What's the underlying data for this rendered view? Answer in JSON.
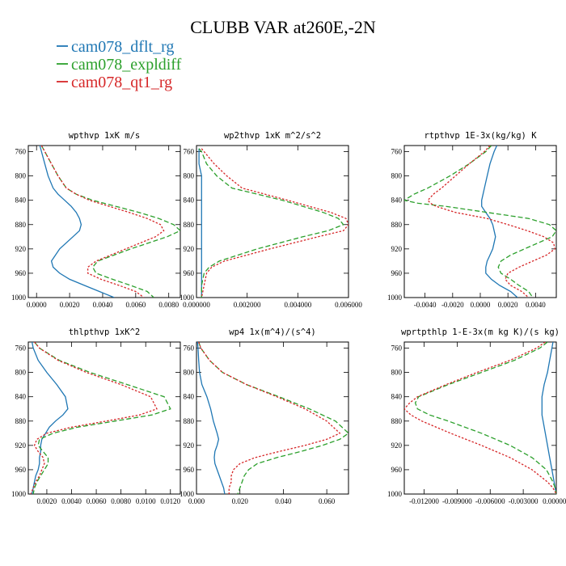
{
  "figure": {
    "title": "CLUBB VAR at260E,-2N",
    "legend": [
      {
        "name": "cam078_dflt_rg",
        "color": "#1f77b4",
        "dash": "solid"
      },
      {
        "name": "cam078_expldiff",
        "color": "#2ca02c",
        "dash": "dash"
      },
      {
        "name": "cam078_qt1_rg",
        "color": "#d62728",
        "dash": "dot"
      }
    ]
  },
  "chart_data": [
    {
      "type": "line",
      "title": "wpthvp  1xK m/s",
      "xlim": [
        -0.0005,
        0.0087
      ],
      "ylim": [
        1000,
        750
      ],
      "xticks": [
        0.0,
        0.002,
        0.004,
        0.006,
        0.008
      ],
      "xtick_labels": [
        "0.0000",
        "0.0020",
        "0.0040",
        "0.0060",
        "0.0080"
      ],
      "yticks": [
        760,
        800,
        840,
        880,
        920,
        960,
        1000
      ],
      "ytick_labels": [
        "760",
        "800",
        "840",
        "880",
        "920",
        "960",
        "1000"
      ],
      "y": [
        750,
        760,
        780,
        800,
        820,
        830,
        840,
        850,
        860,
        870,
        880,
        890,
        900,
        920,
        940,
        950,
        960,
        970,
        980,
        990,
        1000
      ],
      "series": [
        {
          "name": "cam078_dflt_rg",
          "x": [
            0.0002,
            0.0003,
            0.0005,
            0.0007,
            0.001,
            0.0013,
            0.0017,
            0.0021,
            0.0024,
            0.0026,
            0.0027,
            0.0026,
            0.0022,
            0.0014,
            0.0009,
            0.001,
            0.0014,
            0.002,
            0.0029,
            0.0038,
            0.0047
          ]
        },
        {
          "name": "cam078_expldiff",
          "x": [
            0.0003,
            0.0005,
            0.0009,
            0.0013,
            0.0018,
            0.0024,
            0.0034,
            0.0048,
            0.0062,
            0.0074,
            0.0083,
            0.0087,
            0.0079,
            0.0057,
            0.0037,
            0.0034,
            0.0036,
            0.0046,
            0.0057,
            0.0067,
            0.0071
          ]
        },
        {
          "name": "cam078_qt1_rg",
          "x": [
            0.0003,
            0.0005,
            0.0009,
            0.0013,
            0.0018,
            0.0024,
            0.0032,
            0.0044,
            0.0056,
            0.0067,
            0.0075,
            0.0077,
            0.0072,
            0.0054,
            0.0036,
            0.0031,
            0.0031,
            0.0039,
            0.005,
            0.006,
            0.0065
          ]
        }
      ]
    },
    {
      "type": "line",
      "title": "wp2thvp  1xK m^2/s^2",
      "xlim": [
        0.0,
        0.006
      ],
      "ylim": [
        1000,
        750
      ],
      "xticks": [
        0.0,
        0.002,
        0.004,
        0.006
      ],
      "xtick_labels": [
        "0.000000",
        "0.002000",
        "0.004000",
        "0.006000"
      ],
      "yticks": [
        760,
        800,
        840,
        880,
        920,
        960,
        1000
      ],
      "ytick_labels": [
        "760",
        "800",
        "840",
        "880",
        "920",
        "960",
        "1000"
      ],
      "y": [
        755,
        760,
        780,
        800,
        820,
        840,
        860,
        870,
        880,
        890,
        900,
        920,
        940,
        950,
        960,
        980,
        1000
      ],
      "series": [
        {
          "name": "cam078_dflt_rg",
          "x": [
            0.0001,
            0.0001,
            0.0001,
            0.0002,
            0.0002,
            0.0002,
            0.0002,
            0.0002,
            0.0002,
            0.0002,
            0.0002,
            0.0002,
            0.0002,
            0.0002,
            0.0002,
            0.0002,
            0.0002
          ]
        },
        {
          "name": "cam078_expldiff",
          "x": [
            0.0001,
            0.0002,
            0.0004,
            0.0008,
            0.0014,
            0.0034,
            0.005,
            0.0056,
            0.0058,
            0.0052,
            0.0042,
            0.0024,
            0.0009,
            0.0005,
            0.0003,
            0.0002,
            0.0002
          ]
        },
        {
          "name": "cam078_qt1_rg",
          "x": [
            0.0002,
            0.0003,
            0.0007,
            0.0012,
            0.0018,
            0.0036,
            0.0053,
            0.0059,
            0.006,
            0.0058,
            0.0048,
            0.0029,
            0.0011,
            0.0006,
            0.0004,
            0.0003,
            0.0002
          ]
        }
      ]
    },
    {
      "type": "line",
      "title": "rtpthvp  1E-3x(kg/kg) K",
      "xlim": [
        -0.0055,
        0.0055
      ],
      "ylim": [
        1000,
        750
      ],
      "xticks": [
        -0.004,
        -0.002,
        0.0,
        0.002,
        0.004
      ],
      "xtick_labels": [
        "-0.0040",
        "-0.0020",
        "0.0000",
        "0.0020",
        "0.0040"
      ],
      "yticks": [
        760,
        800,
        840,
        880,
        920,
        960,
        1000
      ],
      "ytick_labels": [
        "760",
        "800",
        "840",
        "880",
        "920",
        "960",
        "1000"
      ],
      "y": [
        750,
        760,
        780,
        800,
        820,
        830,
        840,
        845,
        850,
        860,
        870,
        880,
        890,
        900,
        910,
        920,
        930,
        940,
        950,
        960,
        970,
        980,
        990,
        1000
      ],
      "series": [
        {
          "name": "cam078_dflt_rg",
          "x": [
            0.0012,
            0.001,
            0.0007,
            0.0005,
            0.0003,
            0.0002,
            0.0001,
            0.0001,
            0.0001,
            0.0004,
            0.0007,
            0.0009,
            0.001,
            0.0011,
            0.001,
            0.0009,
            0.0007,
            0.0005,
            0.0004,
            0.0004,
            0.0008,
            0.0014,
            0.0022,
            0.0027
          ]
        },
        {
          "name": "cam078_expldiff",
          "x": [
            0.0008,
            0.0004,
            -0.0008,
            -0.0022,
            -0.0038,
            -0.0048,
            -0.0055,
            -0.0045,
            -0.0025,
            0.0005,
            0.0035,
            0.005,
            0.0055,
            0.0052,
            0.0042,
            0.0032,
            0.0022,
            0.0015,
            0.0013,
            0.0015,
            0.0022,
            0.0028,
            0.0035,
            0.0038
          ]
        },
        {
          "name": "cam078_qt1_rg",
          "x": [
            0.0007,
            0.0003,
            -0.0008,
            -0.0018,
            -0.0028,
            -0.0034,
            -0.0038,
            -0.0036,
            -0.0032,
            -0.0018,
            0.0005,
            0.002,
            0.0034,
            0.0046,
            0.0053,
            0.0054,
            0.0048,
            0.0038,
            0.0028,
            0.002,
            0.0018,
            0.0022,
            0.003,
            0.0035
          ]
        }
      ]
    },
    {
      "type": "line",
      "title": "thlpthvp  1xK^2",
      "xlim": [
        0.0005,
        0.0128
      ],
      "ylim": [
        1000,
        750
      ],
      "xticks": [
        0.002,
        0.004,
        0.006,
        0.008,
        0.01,
        0.012
      ],
      "xtick_labels": [
        "0.0020",
        "0.0040",
        "0.0060",
        "0.0080",
        "0.0100",
        "0.0120"
      ],
      "yticks": [
        760,
        800,
        840,
        880,
        920,
        960,
        1000
      ],
      "ytick_labels": [
        "760",
        "800",
        "840",
        "880",
        "920",
        "960",
        "1000"
      ],
      "y": [
        750,
        760,
        780,
        800,
        820,
        840,
        860,
        870,
        880,
        890,
        900,
        910,
        920,
        930,
        940,
        950,
        960,
        970,
        980,
        990,
        1000
      ],
      "series": [
        {
          "name": "cam078_dflt_rg",
          "x": [
            0.0008,
            0.0009,
            0.0013,
            0.002,
            0.0028,
            0.0035,
            0.0037,
            0.0033,
            0.0027,
            0.0022,
            0.0019,
            0.0016,
            0.0015,
            0.0015,
            0.0014,
            0.0014,
            0.0013,
            0.0011,
            0.001,
            0.0009,
            0.0008
          ]
        },
        {
          "name": "cam078_expldiff",
          "x": [
            0.001,
            0.0014,
            0.003,
            0.0055,
            0.0085,
            0.0115,
            0.012,
            0.0105,
            0.0075,
            0.0045,
            0.0025,
            0.0014,
            0.0013,
            0.0017,
            0.0021,
            0.0021,
            0.0018,
            0.0015,
            0.0012,
            0.001,
            0.0009
          ]
        },
        {
          "name": "cam078_qt1_rg",
          "x": [
            0.001,
            0.0014,
            0.0029,
            0.0052,
            0.008,
            0.0104,
            0.0109,
            0.0095,
            0.0068,
            0.004,
            0.002,
            0.0012,
            0.001,
            0.0013,
            0.0017,
            0.0018,
            0.0016,
            0.0014,
            0.0011,
            0.0009,
            0.0007
          ]
        }
      ]
    },
    {
      "type": "line",
      "title": "wp4  1x(m^4)/(s^4)",
      "xlim": [
        0.0,
        0.07
      ],
      "ylim": [
        1000,
        750
      ],
      "xticks": [
        0.0,
        0.02,
        0.04,
        0.06
      ],
      "xtick_labels": [
        "0.000",
        "0.020",
        "0.040",
        "0.060"
      ],
      "yticks": [
        760,
        800,
        840,
        880,
        920,
        960,
        1000
      ],
      "ytick_labels": [
        "760",
        "800",
        "840",
        "880",
        "920",
        "960",
        "1000"
      ],
      "y": [
        750,
        760,
        780,
        800,
        820,
        840,
        860,
        880,
        900,
        910,
        920,
        930,
        940,
        950,
        960,
        970,
        980,
        990,
        1000
      ],
      "series": [
        {
          "name": "cam078_dflt_rg",
          "x": [
            0.0005,
            0.0007,
            0.001,
            0.0014,
            0.0025,
            0.0048,
            0.0065,
            0.0078,
            0.0095,
            0.0102,
            0.0095,
            0.0085,
            0.0082,
            0.0085,
            0.0095,
            0.0105,
            0.0115,
            0.0125,
            0.013
          ]
        },
        {
          "name": "cam078_expldiff",
          "x": [
            0.001,
            0.002,
            0.006,
            0.012,
            0.023,
            0.038,
            0.052,
            0.064,
            0.07,
            0.066,
            0.058,
            0.048,
            0.037,
            0.028,
            0.024,
            0.022,
            0.021,
            0.02,
            0.019
          ]
        },
        {
          "name": "cam078_qt1_rg",
          "x": [
            0.001,
            0.002,
            0.006,
            0.012,
            0.023,
            0.037,
            0.05,
            0.06,
            0.066,
            0.06,
            0.05,
            0.038,
            0.027,
            0.02,
            0.017,
            0.016,
            0.016,
            0.015,
            0.015
          ]
        }
      ]
    },
    {
      "type": "line",
      "title": "wprtpthlp  1-E-3x(m kg K)/(s kg)",
      "xlim": [
        -0.0138,
        0.0
      ],
      "ylim": [
        1000,
        750
      ],
      "xticks": [
        -0.012,
        -0.009,
        -0.006,
        -0.003,
        0.0
      ],
      "xtick_labels": [
        "-0.012000",
        "-0.009000",
        "-0.006000",
        "-0.003000",
        "0.000000"
      ],
      "yticks": [
        760,
        800,
        840,
        880,
        920,
        960,
        1000
      ],
      "ytick_labels": [
        "760",
        "800",
        "840",
        "880",
        "920",
        "960",
        "1000"
      ],
      "y": [
        750,
        760,
        780,
        800,
        820,
        840,
        850,
        860,
        870,
        880,
        900,
        920,
        940,
        960,
        980,
        990,
        1000
      ],
      "series": [
        {
          "name": "cam078_dflt_rg",
          "x": [
            -0.0003,
            -0.0004,
            -0.0006,
            -0.0008,
            -0.0011,
            -0.0013,
            -0.0013,
            -0.0013,
            -0.0013,
            -0.0012,
            -0.001,
            -0.0008,
            -0.0006,
            -0.0004,
            -0.0002,
            -0.0001,
            0.0
          ]
        },
        {
          "name": "cam078_expldiff",
          "x": [
            -0.0008,
            -0.0015,
            -0.0038,
            -0.0068,
            -0.0098,
            -0.0125,
            -0.0128,
            -0.0126,
            -0.0115,
            -0.0098,
            -0.0068,
            -0.0042,
            -0.0022,
            -0.0009,
            -0.0003,
            -0.0001,
            0.0
          ]
        },
        {
          "name": "cam078_qt1_rg",
          "x": [
            -0.001,
            -0.0018,
            -0.0042,
            -0.0072,
            -0.01,
            -0.0126,
            -0.0133,
            -0.0138,
            -0.0132,
            -0.0122,
            -0.0096,
            -0.0068,
            -0.0042,
            -0.0022,
            -0.0008,
            -0.0003,
            0.0
          ]
        }
      ]
    }
  ]
}
